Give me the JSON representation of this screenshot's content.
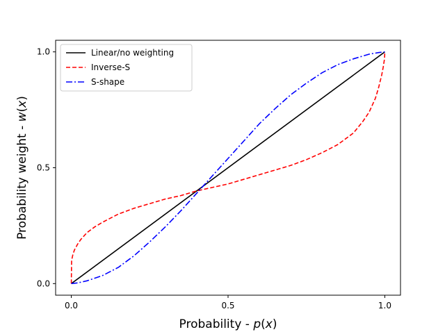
{
  "chart_data": {
    "type": "line",
    "title": "",
    "xlabel": "Probability - p(x)",
    "ylabel": "Probability weight - w(x)",
    "xlim": [
      -0.05,
      1.05
    ],
    "ylim": [
      -0.05,
      1.05
    ],
    "xticks": [
      0.0,
      0.5,
      1.0
    ],
    "xtick_labels": [
      "0.0",
      "0.5",
      "1.0"
    ],
    "yticks": [
      0.0,
      0.5,
      1.0
    ],
    "ytick_labels": [
      "0.0",
      "0.5",
      "1.0"
    ],
    "grid": false,
    "legend_position": "top-left",
    "series": [
      {
        "name": "Linear/no weighting",
        "color": "#000000",
        "dash": "solid",
        "x": [
          0.0,
          1.0
        ],
        "y": [
          0.0,
          1.0
        ]
      },
      {
        "name": "Inverse-S",
        "color": "#ff0000",
        "dash": "dashed",
        "x": [
          0.0,
          0.001,
          0.005,
          0.01,
          0.02,
          0.03,
          0.05,
          0.075,
          0.1,
          0.15,
          0.2,
          0.25,
          0.3,
          0.35,
          0.4,
          0.45,
          0.5,
          0.55,
          0.6,
          0.65,
          0.7,
          0.75,
          0.8,
          0.85,
          0.9,
          0.93,
          0.95,
          0.97,
          0.98,
          0.99,
          0.995,
          0.999,
          1.0
        ],
        "y": [
          0.0,
          0.1,
          0.125,
          0.145,
          0.17,
          0.19,
          0.22,
          0.245,
          0.265,
          0.3,
          0.325,
          0.345,
          0.365,
          0.38,
          0.4,
          0.415,
          0.43,
          0.45,
          0.47,
          0.49,
          0.51,
          0.535,
          0.565,
          0.6,
          0.65,
          0.7,
          0.74,
          0.8,
          0.845,
          0.9,
          0.935,
          0.97,
          1.0
        ]
      },
      {
        "name": "S-shape",
        "color": "#0000ff",
        "dash": "dashdot",
        "x": [
          0.0,
          0.02,
          0.05,
          0.1,
          0.15,
          0.2,
          0.25,
          0.3,
          0.35,
          0.4,
          0.45,
          0.5,
          0.55,
          0.6,
          0.65,
          0.7,
          0.75,
          0.8,
          0.85,
          0.9,
          0.95,
          0.98,
          1.0
        ],
        "y": [
          0.0,
          0.003,
          0.012,
          0.035,
          0.07,
          0.12,
          0.18,
          0.245,
          0.315,
          0.39,
          0.465,
          0.54,
          0.615,
          0.69,
          0.755,
          0.815,
          0.865,
          0.91,
          0.945,
          0.97,
          0.99,
          0.997,
          1.0
        ]
      }
    ]
  }
}
